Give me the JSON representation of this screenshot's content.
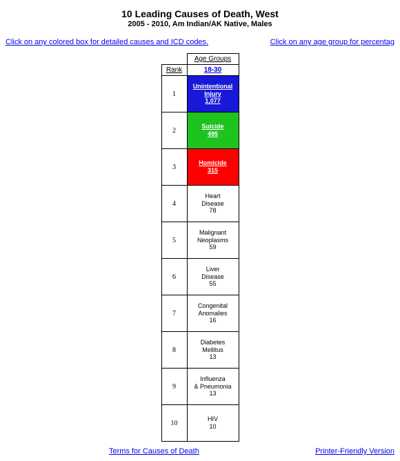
{
  "header": {
    "title": "10 Leading Causes of Death, West",
    "subtitle": "2005 - 2010, Am Indian/AK Native, Males"
  },
  "top_links": {
    "left": "Click on any colored box for detailed causes and ICD codes.",
    "right": "Click on any age group for percentag"
  },
  "table": {
    "age_groups_label": "Age Groups",
    "rank_label": "Rank",
    "age_column": "18-30",
    "rows": [
      {
        "rank": "1",
        "cause_line1": "Unintentional",
        "cause_line2": "Injury",
        "count": "1,077",
        "bg": "#1818d8",
        "fg": "#ffffff",
        "link": true
      },
      {
        "rank": "2",
        "cause_line1": "Suicide",
        "cause_line2": "",
        "count": "495",
        "bg": "#1ec31e",
        "fg": "#ffffff",
        "link": true
      },
      {
        "rank": "3",
        "cause_line1": "Homicide",
        "cause_line2": "",
        "count": "315",
        "bg": "#ff0000",
        "fg": "#ffffff",
        "link": true
      },
      {
        "rank": "4",
        "cause_line1": "Heart",
        "cause_line2": "Disease",
        "count": "78",
        "bg": "#ffffff",
        "fg": "#000000",
        "link": false
      },
      {
        "rank": "5",
        "cause_line1": "Malignant",
        "cause_line2": "Neoplasms",
        "count": "59",
        "bg": "#ffffff",
        "fg": "#000000",
        "link": false
      },
      {
        "rank": "6",
        "cause_line1": "Liver",
        "cause_line2": "Disease",
        "count": "55",
        "bg": "#ffffff",
        "fg": "#000000",
        "link": false
      },
      {
        "rank": "7",
        "cause_line1": "Congenital",
        "cause_line2": "Anomalies",
        "count": "16",
        "bg": "#ffffff",
        "fg": "#000000",
        "link": false
      },
      {
        "rank": "8",
        "cause_line1": "Diabetes",
        "cause_line2": "Mellitus",
        "count": "13",
        "bg": "#ffffff",
        "fg": "#000000",
        "link": false
      },
      {
        "rank": "9",
        "cause_line1": "Influenza",
        "cause_line2": "& Pneumonia",
        "count": "13",
        "bg": "#ffffff",
        "fg": "#000000",
        "link": false
      },
      {
        "rank": "10",
        "cause_line1": "HIV",
        "cause_line2": "",
        "count": "10",
        "bg": "#ffffff",
        "fg": "#000000",
        "link": false
      }
    ]
  },
  "footer_links": {
    "left": "Terms for Causes of Death",
    "right": "Printer-Friendly Version"
  }
}
